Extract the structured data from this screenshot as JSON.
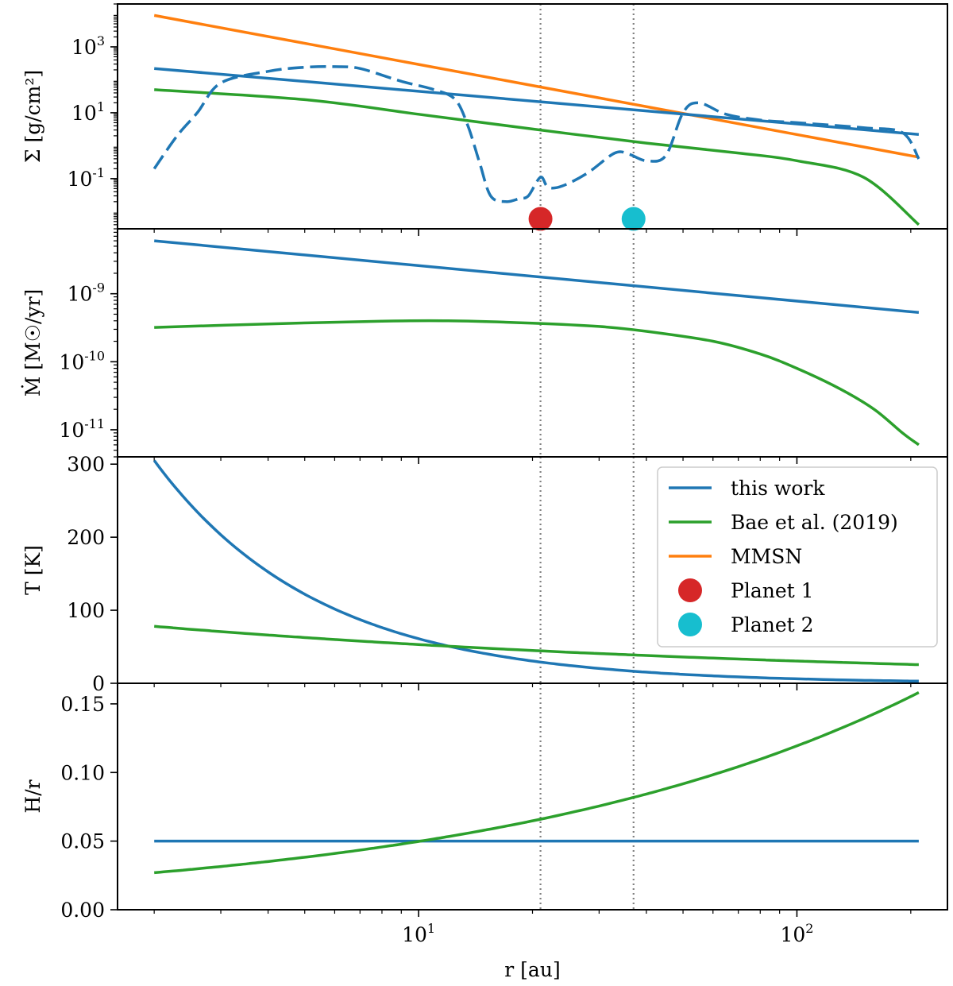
{
  "colors": {
    "blue": "#1f77b4",
    "green": "#2ca02c",
    "orange": "#ff7f0e",
    "red": "#d62728",
    "cyan": "#17becf",
    "vline": "#808080"
  },
  "chart_data": {
    "type": "line",
    "xlabel": "r [au]",
    "xscale": "log",
    "xlim": [
      1.6,
      250
    ],
    "x_ticks": [
      {
        "value": 10,
        "label": "10",
        "exp": "1"
      },
      {
        "value": 100,
        "label": "10",
        "exp": "2"
      }
    ],
    "vlines": [
      21,
      37
    ],
    "legend": {
      "placement": "right, in panel 3",
      "entries": [
        {
          "label": "this work",
          "kind": "line",
          "color": "blue"
        },
        {
          "label": "Bae et al. (2019)",
          "kind": "line",
          "color": "green"
        },
        {
          "label": "MMSN",
          "kind": "line",
          "color": "orange"
        },
        {
          "label": "Planet 1",
          "kind": "marker",
          "color": "red"
        },
        {
          "label": "Planet 2",
          "kind": "marker",
          "color": "cyan"
        }
      ]
    },
    "panels": [
      {
        "id": "sigma",
        "ylabel": "Σ [g/cm²]",
        "yscale": "log",
        "ylim": [
          0.003,
          20000
        ],
        "y_ticks": [
          {
            "value": 1000,
            "label": "10",
            "exp": "3"
          },
          {
            "value": 10,
            "label": "10",
            "exp": "1"
          },
          {
            "value": 0.1,
            "label": "10",
            "exp": "-1"
          }
        ],
        "series": [
          {
            "name": "MMSN",
            "color": "orange",
            "style": "solid",
            "points": [
              [
                2,
                9000
              ],
              [
                210,
                0.45
              ]
            ]
          },
          {
            "name": "this work",
            "color": "blue",
            "style": "solid",
            "points": [
              [
                2,
                220
              ],
              [
                210,
                2.2
              ]
            ]
          },
          {
            "name": "Bae et al. (2019)",
            "color": "green",
            "style": "solid",
            "points": [
              [
                2,
                50
              ],
              [
                5,
                25
              ],
              [
                10,
                9
              ],
              [
                20,
                3.2
              ],
              [
                40,
                1.2
              ],
              [
                70,
                0.6
              ],
              [
                100,
                0.35
              ],
              [
                150,
                0.11
              ],
              [
                210,
                0.004
              ]
            ]
          },
          {
            "name": "this work (gas profile)",
            "color": "blue",
            "style": "dashed",
            "points": [
              [
                2,
                0.2
              ],
              [
                2.3,
                2
              ],
              [
                2.6,
                10
              ],
              [
                3,
                80
              ],
              [
                4,
                180
              ],
              [
                5,
                240
              ],
              [
                6,
                250
              ],
              [
                7,
                220
              ],
              [
                9,
                90
              ],
              [
                11,
                50
              ],
              [
                12.5,
                25
              ],
              [
                13.5,
                4
              ],
              [
                14.5,
                0.3
              ],
              [
                15.5,
                0.03
              ],
              [
                17,
                0.02
              ],
              [
                18.5,
                0.025
              ],
              [
                19.5,
                0.03
              ],
              [
                21,
                0.11
              ],
              [
                22,
                0.055
              ],
              [
                24,
                0.06
              ],
              [
                28,
                0.15
              ],
              [
                33,
                0.6
              ],
              [
                36,
                0.55
              ],
              [
                40,
                0.35
              ],
              [
                45,
                0.5
              ],
              [
                50,
                10
              ],
              [
                55,
                20
              ],
              [
                65,
                9
              ],
              [
                80,
                6
              ],
              [
                100,
                5
              ],
              [
                150,
                3.5
              ],
              [
                190,
                2.5
              ],
              [
                210,
                0.4
              ]
            ]
          }
        ],
        "markers": [
          {
            "name": "Planet 1",
            "color": "red",
            "x": 21,
            "y": 0.006
          },
          {
            "name": "Planet 2",
            "color": "cyan",
            "x": 37,
            "y": 0.006
          }
        ]
      },
      {
        "id": "mdot",
        "ylabel": "Ṁ [M☉/yr]",
        "yscale": "log",
        "ylim": [
          4e-12,
          9e-09
        ],
        "y_ticks": [
          {
            "value": 1e-09,
            "label": "10",
            "exp": "-9"
          },
          {
            "value": 1e-10,
            "label": "10",
            "exp": "-10"
          },
          {
            "value": 1e-11,
            "label": "10",
            "exp": "-11"
          }
        ],
        "series": [
          {
            "name": "this work",
            "color": "blue",
            "style": "solid",
            "points": [
              [
                2,
                6e-09
              ],
              [
                210,
                5.3e-10
              ]
            ]
          },
          {
            "name": "Bae et al. (2019)",
            "color": "green",
            "style": "solid",
            "points": [
              [
                2,
                3.2e-10
              ],
              [
                4,
                3.6e-10
              ],
              [
                8,
                3.95e-10
              ],
              [
                12,
                4e-10
              ],
              [
                20,
                3.7e-10
              ],
              [
                30,
                3.3e-10
              ],
              [
                40,
                2.8e-10
              ],
              [
                60,
                2e-10
              ],
              [
                80,
                1.3e-10
              ],
              [
                100,
                8e-11
              ],
              [
                130,
                4e-11
              ],
              [
                160,
                2e-11
              ],
              [
                190,
                9e-12
              ],
              [
                210,
                6e-12
              ]
            ]
          }
        ]
      },
      {
        "id": "temp",
        "ylabel": "T [K]",
        "yscale": "linear",
        "ylim": [
          0,
          310
        ],
        "y_ticks": [
          {
            "value": 300,
            "label": "300"
          },
          {
            "value": 200,
            "label": "200"
          },
          {
            "value": 100,
            "label": "100"
          },
          {
            "value": 0,
            "label": "0"
          }
        ],
        "series": [
          {
            "name": "this work",
            "color": "blue",
            "style": "solid",
            "fn": "powerlaw",
            "a": 305,
            "x0": 2,
            "p": -1,
            "range": [
              2,
              210
            ]
          },
          {
            "name": "Bae et al. (2019)",
            "color": "green",
            "style": "solid",
            "fn": "powerlaw",
            "a": 78,
            "x0": 2,
            "p": -0.24,
            "range": [
              2,
              210
            ]
          }
        ]
      },
      {
        "id": "hr",
        "ylabel": "H/r",
        "yscale": "linear",
        "ylim": [
          0,
          0.165
        ],
        "y_ticks": [
          {
            "value": 0.15,
            "label": "0.15"
          },
          {
            "value": 0.1,
            "label": "0.10"
          },
          {
            "value": 0.05,
            "label": "0.05"
          },
          {
            "value": 0,
            "label": "0.00"
          }
        ],
        "series": [
          {
            "name": "this work",
            "color": "blue",
            "style": "solid",
            "points": [
              [
                2,
                0.05
              ],
              [
                210,
                0.05
              ]
            ]
          },
          {
            "name": "Bae et al. (2019)",
            "color": "green",
            "style": "solid",
            "fn": "powerlaw",
            "a": 0.027,
            "x0": 2,
            "p": 0.38,
            "range": [
              2,
              210
            ]
          }
        ]
      }
    ]
  }
}
